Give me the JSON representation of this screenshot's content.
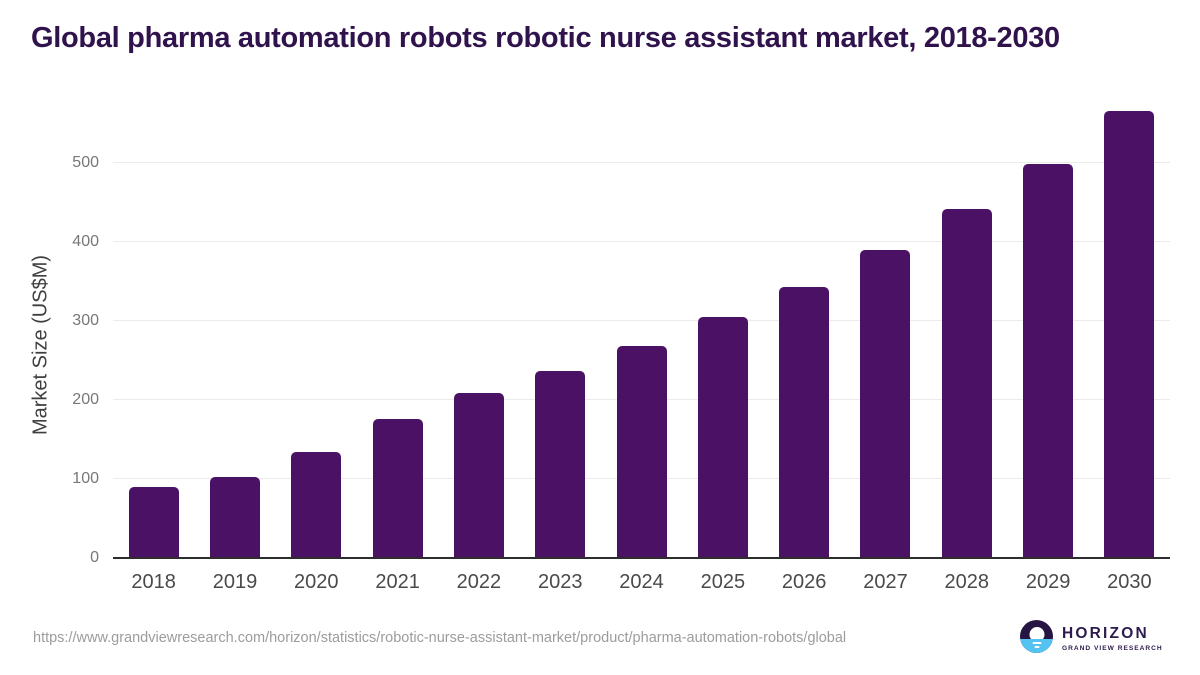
{
  "title": "Global pharma automation robots robotic nurse assistant market, 2018-2030",
  "chart_data": {
    "type": "bar",
    "categories": [
      "2018",
      "2019",
      "2020",
      "2021",
      "2022",
      "2023",
      "2024",
      "2025",
      "2026",
      "2027",
      "2028",
      "2029",
      "2030"
    ],
    "values": [
      90,
      103,
      134,
      176,
      209,
      237,
      268,
      305,
      343,
      390,
      441,
      499,
      565
    ],
    "title": "Global pharma automation robots robotic nurse assistant market, 2018-2030",
    "xlabel": "",
    "ylabel": "Market Size (US$M)",
    "yticks": [
      0,
      100,
      200,
      300,
      400,
      500
    ],
    "ylim": [
      0,
      582
    ],
    "grid": true,
    "legend": false,
    "bar_color": "#4a1164"
  },
  "footer": {
    "source_url": "https://www.grandviewresearch.com/horizon/statistics/robotic-nurse-assistant-market/product/pharma-automation-robots/global",
    "logo": {
      "brand": "HORIZON",
      "subtitle": "GRAND VIEW RESEARCH"
    }
  },
  "colors": {
    "bar": "#4a1164",
    "title": "#30124c",
    "axis_text": "#777777",
    "x_label": "#4a4a4a",
    "grid_line": "#ebebeb",
    "baseline": "#2d2d2d",
    "url_text": "#9c9c9c",
    "logo_navy": "#261543",
    "logo_blue": "#54c3f1",
    "logo_text": "#2d1b4e"
  }
}
